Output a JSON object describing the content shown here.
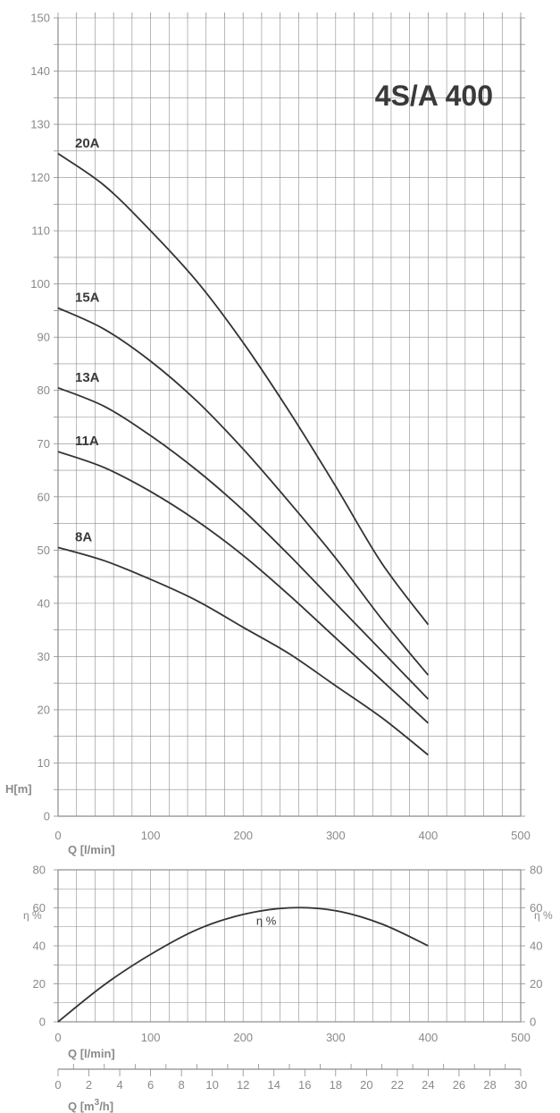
{
  "colors": {
    "grid": "#8c8c8c",
    "curve": "#333333",
    "text": "#8a8a8a",
    "title": "#3a3a3a"
  },
  "chart_data": [
    {
      "type": "line",
      "title": "4S/A 400",
      "ylabel": "H[m]",
      "xlabel": "Q [l/min]",
      "xlim": [
        0,
        500
      ],
      "ylim": [
        0,
        150
      ],
      "x_ticks": [
        "0",
        "100",
        "200",
        "300",
        "400",
        "500"
      ],
      "y_ticks": [
        "0",
        "10",
        "20",
        "30",
        "40",
        "50",
        "60",
        "70",
        "80",
        "90",
        "100",
        "110",
        "120",
        "130",
        "140",
        "150"
      ],
      "grid": true,
      "series": [
        {
          "name": "20A",
          "x": [
            0,
            50,
            100,
            150,
            200,
            250,
            300,
            350,
            400
          ],
          "values": [
            124.5,
            118.5,
            110.0,
            100.5,
            89.0,
            76.0,
            62.0,
            47.5,
            36.0
          ]
        },
        {
          "name": "15A",
          "x": [
            0,
            50,
            100,
            150,
            200,
            250,
            300,
            350,
            400
          ],
          "values": [
            95.5,
            91.5,
            85.5,
            78.0,
            69.0,
            59.0,
            48.5,
            37.0,
            26.5
          ]
        },
        {
          "name": "13A",
          "x": [
            0,
            50,
            100,
            150,
            200,
            250,
            300,
            350,
            400
          ],
          "values": [
            80.5,
            77.0,
            71.5,
            65.0,
            57.5,
            49.0,
            40.0,
            31.0,
            22.0
          ]
        },
        {
          "name": "11A",
          "x": [
            0,
            50,
            100,
            150,
            200,
            250,
            300,
            350,
            400
          ],
          "values": [
            68.5,
            65.5,
            61.0,
            55.5,
            49.0,
            41.5,
            33.5,
            25.5,
            17.5
          ]
        },
        {
          "name": "8A",
          "x": [
            0,
            50,
            100,
            150,
            200,
            250,
            300,
            350,
            400
          ],
          "values": [
            50.5,
            48.0,
            44.5,
            40.5,
            35.5,
            30.5,
            24.5,
            18.5,
            11.5
          ]
        }
      ]
    },
    {
      "type": "line",
      "ylabel": "η %",
      "ylabel_right": "η %",
      "xlabel": "Q [l/min]",
      "xlim": [
        0,
        500
      ],
      "ylim": [
        0,
        80
      ],
      "x_ticks": [
        "0",
        "100",
        "200",
        "300",
        "400",
        "500"
      ],
      "y_ticks": [
        "0",
        "20",
        "40",
        "60",
        "80"
      ],
      "grid": true,
      "series": [
        {
          "name": "η %",
          "x": [
            0,
            50,
            100,
            150,
            200,
            250,
            300,
            350,
            400
          ],
          "values": [
            0,
            19.5,
            35.5,
            48.5,
            56.5,
            60.0,
            58.5,
            51.5,
            40.0
          ]
        }
      ]
    },
    {
      "type": "axis",
      "xlabel": "Q [m3/h]",
      "xlim": [
        0,
        30
      ],
      "x_ticks": [
        "0",
        "2",
        "4",
        "6",
        "8",
        "10",
        "12",
        "14",
        "16",
        "18",
        "20",
        "22",
        "24",
        "26",
        "28",
        "30"
      ]
    }
  ]
}
